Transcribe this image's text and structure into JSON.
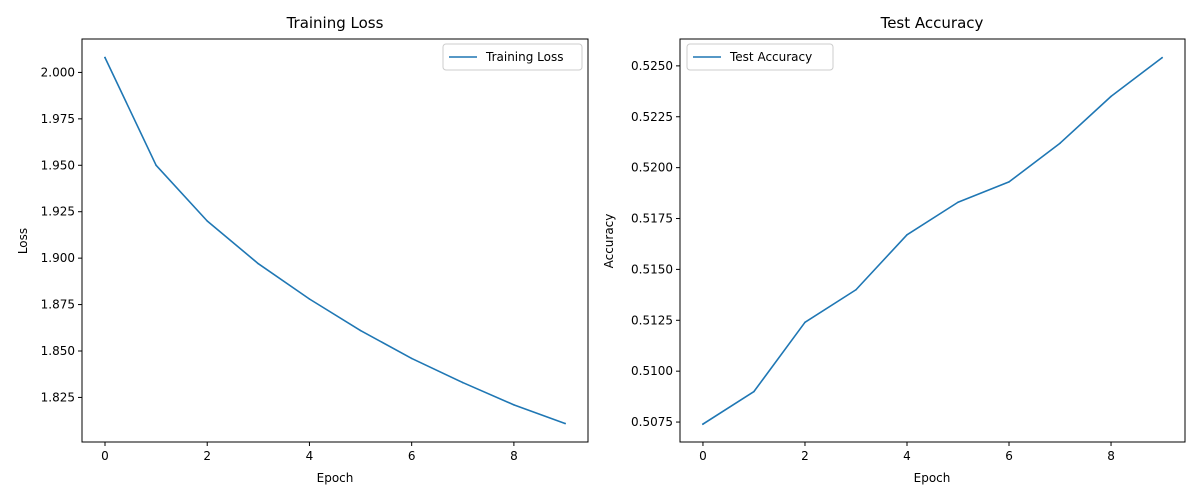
{
  "chart_data": [
    {
      "type": "line",
      "title": "Training Loss",
      "xlabel": "Epoch",
      "ylabel": "Loss",
      "x": [
        0,
        1,
        2,
        3,
        4,
        5,
        6,
        7,
        8,
        9
      ],
      "series": [
        {
          "name": "Training Loss",
          "color": "#1f77b4",
          "values": [
            2.008,
            1.95,
            1.92,
            1.897,
            1.878,
            1.861,
            1.846,
            1.833,
            1.821,
            1.811
          ]
        }
      ],
      "xlim": [
        -0.45,
        9.45
      ],
      "ylim": [
        1.801,
        2.018
      ],
      "xticks": [
        0,
        2,
        4,
        6,
        8
      ],
      "xtick_labels": [
        "0",
        "2",
        "4",
        "6",
        "8"
      ],
      "yticks": [
        1.825,
        1.85,
        1.875,
        1.9,
        1.925,
        1.95,
        1.975,
        2.0
      ],
      "ytick_labels": [
        "1.825",
        "1.850",
        "1.875",
        "1.900",
        "1.925",
        "1.950",
        "1.975",
        "2.000"
      ],
      "legend": "top-right",
      "grid": false
    },
    {
      "type": "line",
      "title": "Test Accuracy",
      "xlabel": "Epoch",
      "ylabel": "Accuracy",
      "x": [
        0,
        1,
        2,
        3,
        4,
        5,
        6,
        7,
        8,
        9
      ],
      "series": [
        {
          "name": "Test Accuracy",
          "color": "#1f77b4",
          "values": [
            0.5074,
            0.509,
            0.5124,
            0.514,
            0.5167,
            0.5183,
            0.5193,
            0.5212,
            0.5235,
            0.5254
          ]
        }
      ],
      "xlim": [
        -0.45,
        9.45
      ],
      "ylim": [
        0.50652,
        0.52632
      ],
      "xticks": [
        0,
        2,
        4,
        6,
        8
      ],
      "xtick_labels": [
        "0",
        "2",
        "4",
        "6",
        "8"
      ],
      "yticks": [
        0.5075,
        0.51,
        0.5125,
        0.515,
        0.5175,
        0.52,
        0.5225,
        0.525
      ],
      "ytick_labels": [
        "0.5075",
        "0.5100",
        "0.5125",
        "0.5150",
        "0.5175",
        "0.5200",
        "0.5225",
        "0.5250"
      ],
      "legend": "top-left",
      "grid": false
    }
  ]
}
